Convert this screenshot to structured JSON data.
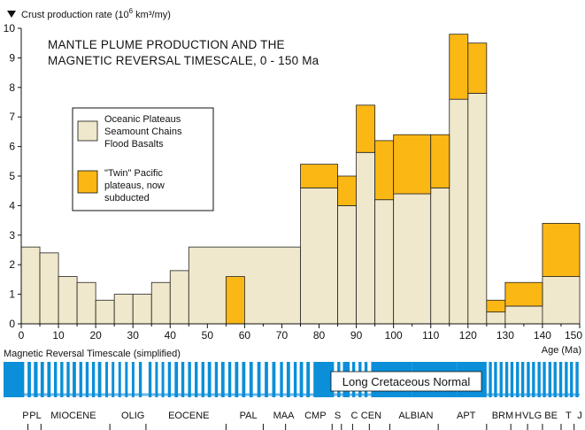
{
  "chart_data": {
    "type": "bar",
    "title_line1": "MANTLE PLUME PRODUCTION AND THE",
    "title_line2": "MAGNETIC REVERSAL TIMESCALE, 0 - 150 Ma",
    "ylabel_prefix": "Crust production rate (10",
    "ylabel_exp": "6",
    "ylabel_suffix": " km³/my)",
    "xlabel": "Age (Ma)",
    "xlim": [
      0,
      150
    ],
    "ylim": [
      0,
      10
    ],
    "x_ticks": [
      "0",
      "10",
      "20",
      "30",
      "40",
      "50",
      "60",
      "70",
      "80",
      "90",
      "100",
      "110",
      "120",
      "130",
      "140",
      "150"
    ],
    "y_ticks": [
      "0",
      "1",
      "2",
      "3",
      "4",
      "5",
      "6",
      "7",
      "8",
      "9",
      "10"
    ],
    "colors": {
      "base": "#f0e8cc",
      "twin": "#fbb714",
      "reversal": "#0a8fd8"
    },
    "legend": {
      "base_lines": [
        "Oceanic Plateaus",
        "Seamount Chains",
        "Flood Basalts"
      ],
      "twin_lines": [
        "\"Twin\" Pacific",
        "plateaus, now",
        "subducted"
      ]
    },
    "series": [
      {
        "key": "base",
        "bins": [
          {
            "x0": 0,
            "x1": 5,
            "value": 2.6
          },
          {
            "x0": 5,
            "x1": 10,
            "value": 2.4
          },
          {
            "x0": 10,
            "x1": 15,
            "value": 1.6
          },
          {
            "x0": 15,
            "x1": 20,
            "value": 1.4
          },
          {
            "x0": 20,
            "x1": 25,
            "value": 0.8
          },
          {
            "x0": 25,
            "x1": 30,
            "value": 1.0
          },
          {
            "x0": 30,
            "x1": 35,
            "value": 1.0
          },
          {
            "x0": 35,
            "x1": 40,
            "value": 1.4
          },
          {
            "x0": 40,
            "x1": 45,
            "value": 1.8
          },
          {
            "x0": 45,
            "x1": 75,
            "value": 2.6
          },
          {
            "x0": 75,
            "x1": 85,
            "value": 4.6
          },
          {
            "x0": 85,
            "x1": 90,
            "value": 4.0
          },
          {
            "x0": 90,
            "x1": 95,
            "value": 5.8
          },
          {
            "x0": 95,
            "x1": 100,
            "value": 4.2
          },
          {
            "x0": 100,
            "x1": 110,
            "value": 4.4
          },
          {
            "x0": 110,
            "x1": 115,
            "value": 4.6
          },
          {
            "x0": 115,
            "x1": 120,
            "value": 7.6
          },
          {
            "x0": 120,
            "x1": 125,
            "value": 7.8
          },
          {
            "x0": 125,
            "x1": 130,
            "value": 0.4
          },
          {
            "x0": 130,
            "x1": 140,
            "value": 0.6
          },
          {
            "x0": 140,
            "x1": 150,
            "value": 1.6
          }
        ]
      },
      {
        "key": "twin",
        "bins": [
          {
            "x0": 55,
            "x1": 60,
            "value": 1.6
          },
          {
            "x0": 75,
            "x1": 85,
            "value": 0.8
          },
          {
            "x0": 85,
            "x1": 90,
            "value": 1.0
          },
          {
            "x0": 90,
            "x1": 95,
            "value": 1.6
          },
          {
            "x0": 95,
            "x1": 100,
            "value": 2.0
          },
          {
            "x0": 100,
            "x1": 110,
            "value": 2.0
          },
          {
            "x0": 110,
            "x1": 115,
            "value": 1.8
          },
          {
            "x0": 115,
            "x1": 120,
            "value": 2.2
          },
          {
            "x0": 120,
            "x1": 125,
            "value": 1.7
          },
          {
            "x0": 125,
            "x1": 130,
            "value": 0.4
          },
          {
            "x0": 130,
            "x1": 140,
            "value": 0.8
          },
          {
            "x0": 140,
            "x1": 150,
            "value": 1.8
          }
        ]
      }
    ],
    "reversal": {
      "label": "Magnetic Reversal Timescale (simplified)",
      "long_normal_label": "Long Cretaceous Normal",
      "normal_intervals": [
        [
          0.0,
          0.8
        ],
        [
          1.7,
          2.6
        ],
        [
          3.4,
          4.4
        ],
        [
          5.2,
          6.1
        ],
        [
          7.0,
          7.9
        ],
        [
          8.8,
          9.6
        ],
        [
          10.5,
          11.3
        ],
        [
          12.2,
          13.0
        ],
        [
          13.8,
          14.7
        ],
        [
          15.6,
          16.4
        ],
        [
          17.3,
          18.1
        ],
        [
          19.0,
          19.8
        ],
        [
          20.6,
          21.5
        ],
        [
          22.6,
          23.3
        ],
        [
          24.3,
          25.0
        ],
        [
          26.1,
          26.8
        ],
        [
          27.9,
          28.6
        ],
        [
          29.7,
          30.4
        ],
        [
          31.6,
          32.4
        ],
        [
          34.2,
          35.0
        ],
        [
          36.0,
          36.7
        ],
        [
          37.7,
          38.4
        ],
        [
          39.4,
          40.2
        ],
        [
          41.2,
          42.1
        ],
        [
          43.0,
          43.8
        ],
        [
          44.8,
          45.6
        ],
        [
          46.6,
          47.4
        ],
        [
          48.4,
          49.2
        ],
        [
          50.1,
          51.0
        ],
        [
          52.0,
          52.8
        ],
        [
          53.7,
          54.6
        ],
        [
          55.6,
          56.4
        ],
        [
          57.4,
          58.3
        ],
        [
          59.3,
          60.2
        ],
        [
          61.3,
          62.2
        ],
        [
          63.4,
          64.3
        ],
        [
          65.4,
          66.3
        ],
        [
          67.4,
          68.3
        ],
        [
          69.5,
          70.3
        ],
        [
          71.3,
          72.2
        ],
        [
          73.2,
          74.0
        ],
        [
          74.8,
          75.7
        ],
        [
          76.6,
          77.5
        ],
        [
          78.5,
          84.0
        ],
        [
          84.9,
          85.7
        ],
        [
          86.4,
          88.2
        ],
        [
          88.9,
          89.7
        ],
        [
          90.6,
          91.4
        ],
        [
          92.2,
          93.0
        ],
        [
          94.0,
          105.0
        ],
        [
          105.0,
          117.0
        ],
        [
          117.0,
          125.0
        ],
        [
          125.6,
          126.4
        ],
        [
          127.0,
          127.8
        ],
        [
          128.5,
          129.3
        ],
        [
          130.0,
          130.8
        ],
        [
          131.4,
          132.2
        ],
        [
          132.9,
          133.7
        ],
        [
          134.3,
          135.1
        ],
        [
          135.8,
          136.6
        ],
        [
          137.2,
          138.0
        ],
        [
          138.7,
          139.5
        ],
        [
          140.1,
          140.9
        ],
        [
          141.6,
          142.4
        ],
        [
          143.0,
          143.8
        ],
        [
          144.5,
          145.3
        ],
        [
          146.0,
          146.8
        ],
        [
          147.4,
          148.2
        ],
        [
          148.9,
          149.7
        ]
      ]
    },
    "epochs": [
      {
        "label": "P",
        "x": 0.3
      },
      {
        "label": "PL",
        "x": 3.8
      },
      {
        "label": "MIOCENE",
        "x": 14
      },
      {
        "label": "OLIG",
        "x": 30
      },
      {
        "label": "EOCENE",
        "x": 45
      },
      {
        "label": "PAL",
        "x": 61
      },
      {
        "label": "MAA",
        "x": 70.5
      },
      {
        "label": "CMP",
        "x": 79
      },
      {
        "label": "S",
        "x": 85
      },
      {
        "label": "C",
        "x": 89.5
      },
      {
        "label": "CEN",
        "x": 94
      },
      {
        "label": "ALBIAN",
        "x": 106
      },
      {
        "label": "APT",
        "x": 119.5
      },
      {
        "label": "BRM",
        "x": 129.3
      },
      {
        "label": "H",
        "x": 133.5
      },
      {
        "label": "VLG",
        "x": 137.2
      },
      {
        "label": "BE",
        "x": 142.3
      },
      {
        "label": "T",
        "x": 147
      },
      {
        "label": "J",
        "x": 150
      }
    ],
    "epoch_boundaries": [
      1.8,
      5.3,
      23.8,
      33.5,
      55.0,
      65.0,
      71.0,
      83.5,
      86.0,
      89.0,
      93.5,
      99.0,
      112.0,
      125.0,
      131.5,
      136.0,
      140.0,
      145.0,
      148.5
    ]
  }
}
